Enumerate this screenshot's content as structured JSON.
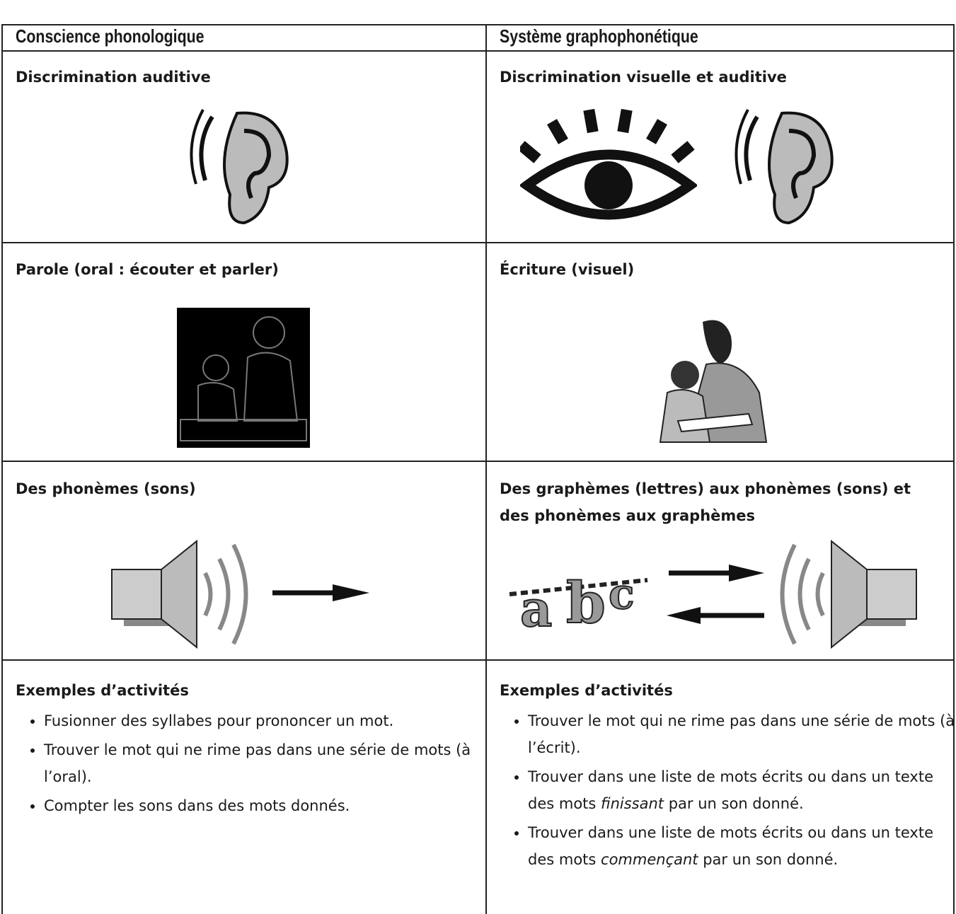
{
  "header": {
    "left": "Conscience phonologique",
    "right": "Système graphophonétique"
  },
  "rows": [
    {
      "left": "Discrimination auditive",
      "right": "Discrimination visuelle et auditive"
    },
    {
      "left": "Parole (oral : écouter et parler)",
      "right": "Écriture (visuel)"
    },
    {
      "left": "Des phonèmes (sons)",
      "right": "Des graphèmes (lettres) aux phonèmes (sons) et des phonèmes aux graphèmes"
    }
  ],
  "activities": {
    "left": {
      "title": "Exemples d’activités",
      "items": [
        "Fusionner des syllabes pour prononcer un mot.",
        "Trouver le mot qui ne rime pas dans une série de mots (à l’oral).",
        "Compter les sons dans des mots donnés."
      ]
    },
    "right": {
      "title": "Exemples d’activités",
      "items": [
        "Trouver le mot qui ne rime pas dans une série de mots (à l’écrit).",
        {
          "before": "Trouver dans une liste de mots écrits ou dans un texte des mots ",
          "emphasis": "finissant",
          "after": " par un son donné."
        },
        {
          "before": "Trouver dans une liste de mots écrits ou dans un texte des mots ",
          "emphasis": "commençant",
          "after": " par un son donné."
        }
      ]
    }
  }
}
